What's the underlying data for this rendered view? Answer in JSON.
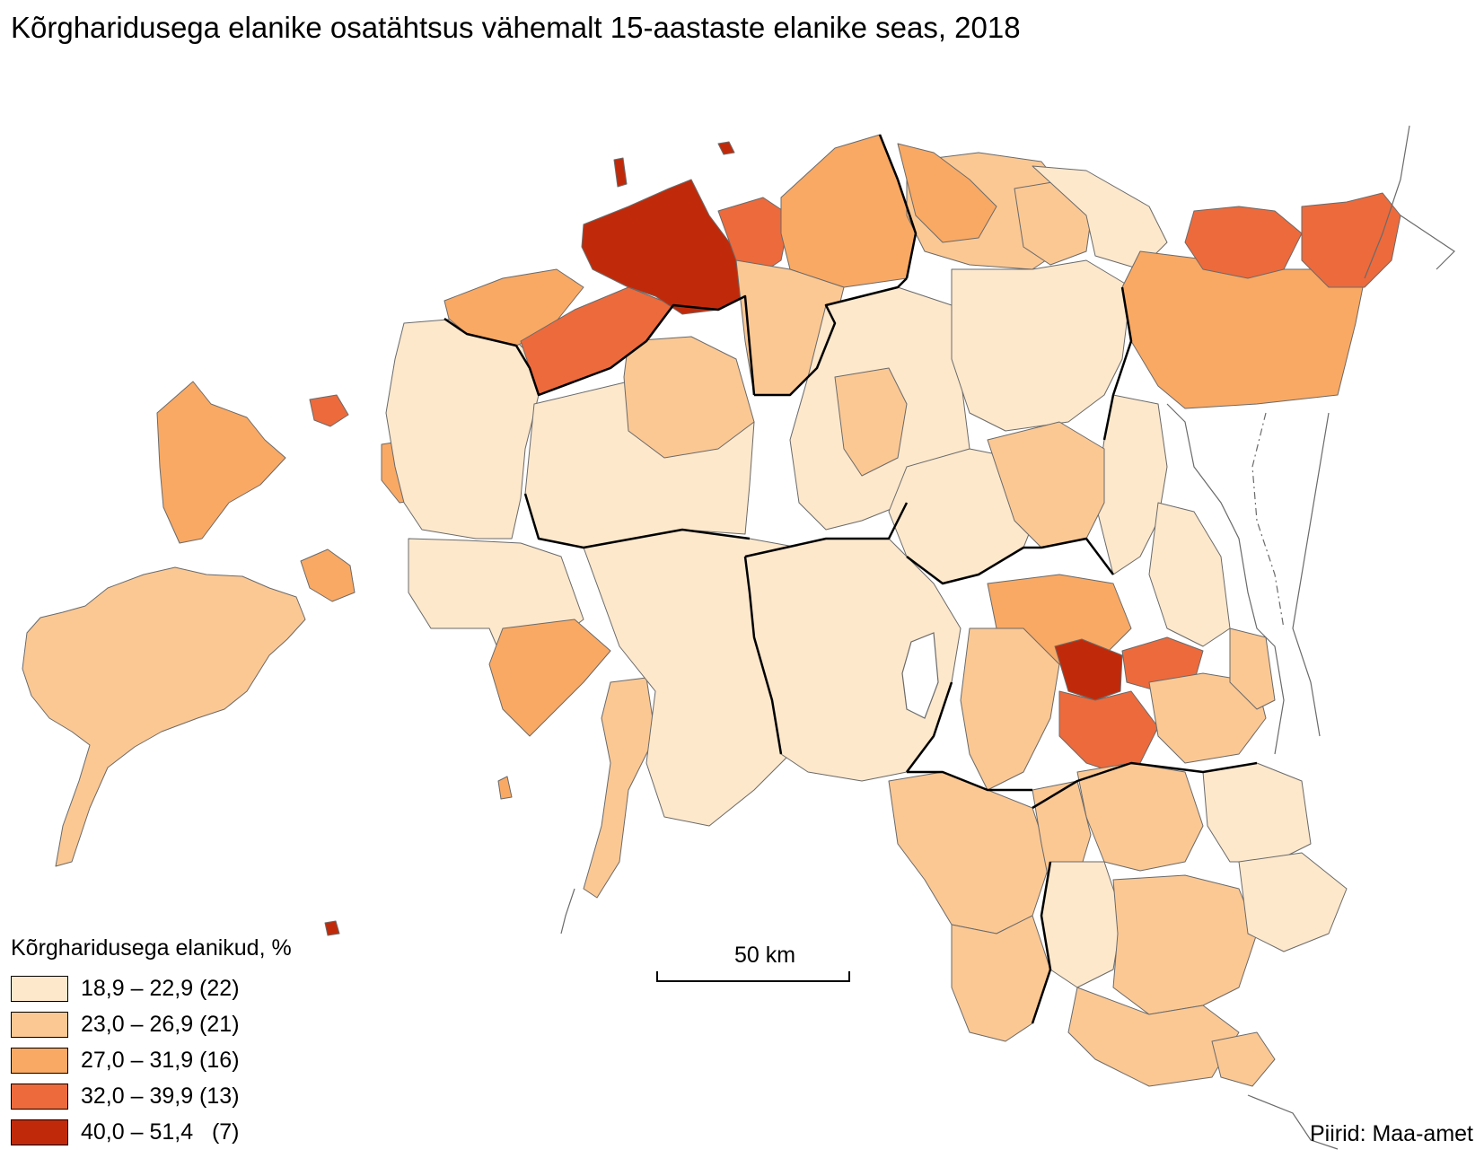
{
  "title": "Kõrgharidusega elanike osatähtsus vähemalt 15-aastaste elanike seas, 2018",
  "legend": {
    "title": "Kõrgharidusega elanikud, %",
    "classes": [
      {
        "label": "18,9 – 22,9 (22)",
        "color": "#fde8cc"
      },
      {
        "label": "23,0 – 26,9 (21)",
        "color": "#fbc894"
      },
      {
        "label": "27,0 – 31,9 (16)",
        "color": "#f9a964"
      },
      {
        "label": "32,0 – 39,9 (13)",
        "color": "#ed6a3c"
      },
      {
        "label": "40,0 – 51,4   (7)",
        "color": "#c02a0a"
      }
    ]
  },
  "scale_bar": {
    "label": "50 km"
  },
  "source": "Piirid: Maa-amet"
}
